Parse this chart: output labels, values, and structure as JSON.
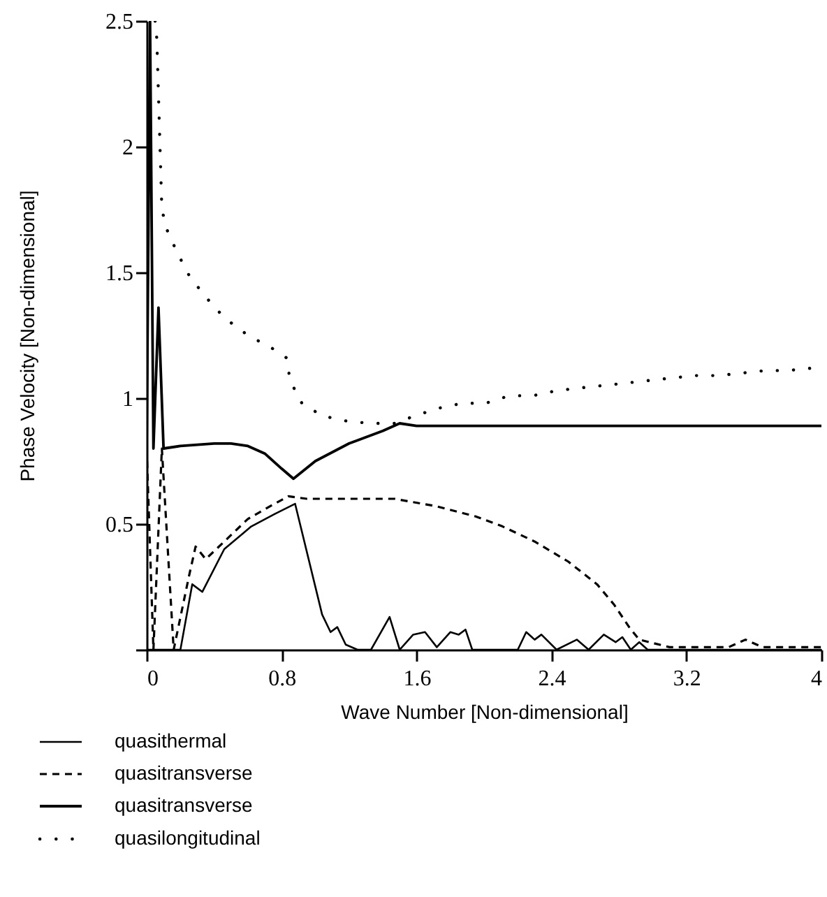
{
  "chart_data": {
    "type": "line",
    "xlabel": "Wave Number [Non-dimensional]",
    "ylabel": "Phase Velocity [Non-dimensional]",
    "xlim": [
      0,
      4
    ],
    "ylim": [
      0,
      2.5
    ],
    "xticks": [
      0,
      0.8,
      1.6,
      2.4,
      3.2,
      4
    ],
    "yticks": [
      {
        "value": 0,
        "label": null
      },
      0.5,
      1,
      1.5,
      2,
      2.5
    ],
    "grid": false,
    "legend": "bottom",
    "series": [
      {
        "name": "quasithermal",
        "color": "#000000",
        "line_style": "solid",
        "x": [
          0,
          0.2,
          0.27,
          0.33,
          0.46,
          0.62,
          0.76,
          0.88,
          1.04,
          1.09,
          1.13,
          1.18,
          1.25,
          1.33,
          1.44,
          1.5,
          1.58,
          1.65,
          1.72,
          1.8,
          1.85,
          1.89,
          1.93,
          2.2,
          2.25,
          2.3,
          2.34,
          2.43,
          2.55,
          2.62,
          2.71,
          2.78,
          2.82,
          2.87,
          2.92,
          2.97,
          4
        ],
        "values": [
          0,
          0,
          0.26,
          0.23,
          0.4,
          0.49,
          0.54,
          0.58,
          0.14,
          0.07,
          0.09,
          0.02,
          0,
          0,
          0.13,
          0,
          0.06,
          0.07,
          0.01,
          0.07,
          0.06,
          0.08,
          0,
          0,
          0.07,
          0.04,
          0.06,
          0,
          0.04,
          0,
          0.06,
          0.03,
          0.05,
          0,
          0.03,
          0,
          0
        ]
      },
      {
        "name": "quasitransverse",
        "color": "#000000",
        "line_style": "dashed",
        "x": [
          0,
          0.04,
          0.09,
          0.16,
          0.25,
          0.29,
          0.35,
          0.46,
          0.6,
          0.73,
          0.84,
          0.95,
          1.2,
          1.47,
          1.72,
          1.95,
          2.11,
          2.3,
          2.5,
          2.67,
          2.77,
          2.86,
          2.92,
          3.1,
          3.45,
          3.55,
          3.65,
          4
        ],
        "values": [
          0.8,
          0,
          0.8,
          0,
          0.29,
          0.41,
          0.36,
          0.43,
          0.52,
          0.57,
          0.61,
          0.6,
          0.6,
          0.6,
          0.57,
          0.53,
          0.49,
          0.43,
          0.35,
          0.26,
          0.18,
          0.09,
          0.04,
          0.01,
          0.01,
          0.04,
          0.01,
          0.01
        ]
      },
      {
        "name": "quasitransverse",
        "color": "#000000",
        "line_style": "solid",
        "x": [
          0,
          0.02,
          0.04,
          0.07,
          0.1,
          0.2,
          0.4,
          0.5,
          0.6,
          0.7,
          0.8,
          0.87,
          1.0,
          1.2,
          1.4,
          1.5,
          1.6,
          4
        ],
        "values": [
          0.8,
          2.5,
          0.8,
          1.36,
          0.8,
          0.81,
          0.82,
          0.82,
          0.81,
          0.78,
          0.72,
          0.68,
          0.75,
          0.82,
          0.87,
          0.9,
          0.89,
          0.89
        ]
      },
      {
        "name": "quasilongitudinal",
        "color": "#000000",
        "line_style": "dotted",
        "x": [
          0.05,
          0.06,
          0.09,
          0.12,
          0.18,
          0.25,
          0.34,
          0.46,
          0.6,
          0.74,
          0.83,
          0.85,
          0.92,
          1.04,
          1.18,
          1.32,
          1.47,
          1.59,
          1.73,
          1.87,
          2.01,
          2.15,
          2.29,
          2.43,
          2.56,
          2.7,
          2.84,
          2.97,
          3.11,
          3.25,
          3.39,
          3.53,
          3.67,
          3.8,
          3.95
        ],
        "values": [
          2.5,
          2.43,
          1.75,
          1.67,
          1.58,
          1.49,
          1.41,
          1.32,
          1.25,
          1.2,
          1.16,
          1.07,
          0.98,
          0.93,
          0.91,
          0.9,
          0.9,
          0.93,
          0.96,
          0.98,
          0.98,
          1.01,
          1.01,
          1.03,
          1.04,
          1.05,
          1.06,
          1.07,
          1.08,
          1.09,
          1.09,
          1.1,
          1.11,
          1.11,
          1.12
        ]
      }
    ]
  }
}
